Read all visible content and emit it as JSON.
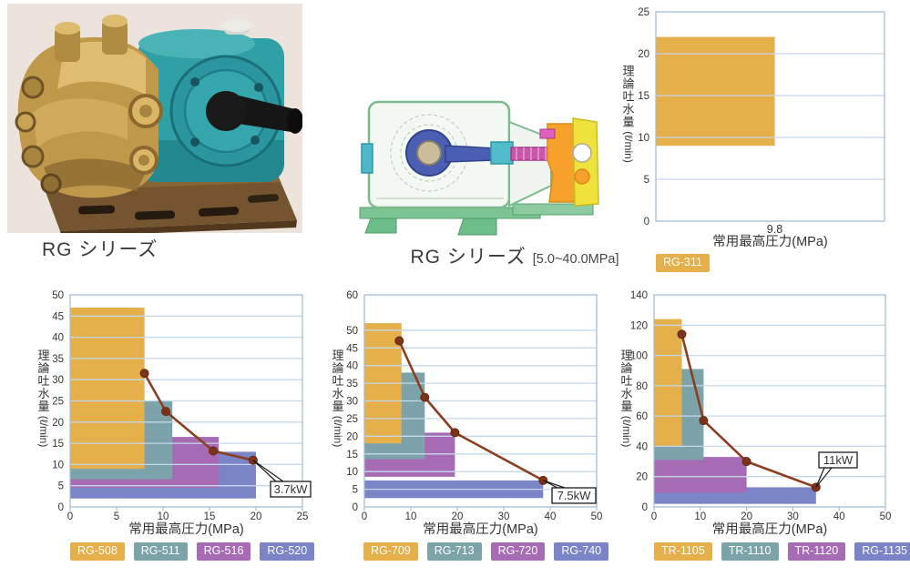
{
  "captions": {
    "photo": "RG シリーズ",
    "cutaway": "RG シリーズ",
    "cutaway_range": "[5.0~40.0MPa]"
  },
  "colors": {
    "orange": "#E5AF4A",
    "teal": "#7DA3AA",
    "purple": "#A76BB6",
    "blue": "#7A84C6",
    "line": "#8B3E20",
    "marker": "#7C3318",
    "grid": "#C5D8E9",
    "border": "#A3BDD3",
    "text": "#333333"
  },
  "chart_data": [
    {
      "id": "rg311",
      "type": "bar",
      "xlabel": "常用最高圧力(MPa)",
      "ylabel": "理論吐水量(ℓ/min)",
      "ylim": [
        0,
        25
      ],
      "yticks": [
        0,
        5,
        10,
        15,
        20,
        25
      ],
      "x_tick_labels": [
        {
          "label": "9.8",
          "frac": 0.52
        }
      ],
      "series": [
        {
          "name": "RG-311",
          "color_key": "orange",
          "x_frac": [
            0,
            0.52
          ],
          "y": [
            9,
            22
          ]
        }
      ]
    },
    {
      "id": "rg500",
      "type": "bar+line",
      "xlabel": "常用最高圧力(MPa)",
      "ylabel": "理論吐水量(ℓ/min)",
      "xlim": [
        0,
        25
      ],
      "xticks": [
        0,
        5,
        10,
        15,
        20,
        25
      ],
      "ylim": [
        0,
        50
      ],
      "yticks": [
        0,
        5,
        10,
        15,
        20,
        25,
        30,
        35,
        40,
        45,
        50
      ],
      "series": [
        {
          "name": "RG-508",
          "color_key": "orange",
          "x": [
            0,
            8
          ],
          "y": [
            9,
            47
          ]
        },
        {
          "name": "RG-511",
          "color_key": "teal",
          "x": [
            0,
            11
          ],
          "y": [
            6.5,
            25
          ]
        },
        {
          "name": "RG-516",
          "color_key": "purple",
          "x": [
            0,
            16
          ],
          "y": [
            4.5,
            16.5
          ]
        },
        {
          "name": "RG-520",
          "color_key": "blue",
          "x": [
            0,
            20
          ],
          "y": [
            2,
            13
          ]
        }
      ],
      "power_line": {
        "label": "3.7kW",
        "points": [
          [
            8,
            31.5
          ],
          [
            10.3,
            22.5
          ],
          [
            15.4,
            13.2
          ],
          [
            19.7,
            11
          ]
        ]
      }
    },
    {
      "id": "rg700",
      "type": "bar+line",
      "xlabel": "常用最高圧力(MPa)",
      "ylabel": "理論吐水量(ℓ/min)",
      "xlim": [
        0,
        50
      ],
      "xticks": [
        0,
        10,
        20,
        30,
        40,
        50
      ],
      "ylim": [
        0,
        60
      ],
      "yticks": [
        0,
        5,
        10,
        15,
        20,
        25,
        30,
        35,
        40,
        45,
        50,
        60
      ],
      "series": [
        {
          "name": "RG-709",
          "color_key": "orange",
          "x": [
            0,
            8
          ],
          "y": [
            18,
            52
          ]
        },
        {
          "name": "RG-713",
          "color_key": "teal",
          "x": [
            0,
            13
          ],
          "y": [
            13.5,
            38
          ]
        },
        {
          "name": "RG-720",
          "color_key": "purple",
          "x": [
            0,
            19.5
          ],
          "y": [
            8.5,
            21
          ]
        },
        {
          "name": "RG-740",
          "color_key": "blue",
          "x": [
            0,
            38.5
          ],
          "y": [
            2.5,
            7.5
          ]
        }
      ],
      "power_line": {
        "label": "7.5kW",
        "points": [
          [
            7.5,
            47
          ],
          [
            13,
            31
          ],
          [
            19.5,
            21
          ],
          [
            38.5,
            7.5
          ]
        ]
      }
    },
    {
      "id": "tr1100",
      "type": "bar+line",
      "xlabel": "常用最高圧力(MPa)",
      "ylabel": "理論吐水量(ℓ/min)",
      "xlim": [
        0,
        50
      ],
      "xticks": [
        0,
        10,
        20,
        30,
        40,
        50
      ],
      "ylim": [
        0,
        140
      ],
      "yticks": [
        0,
        20,
        40,
        60,
        80,
        100,
        120,
        140
      ],
      "series": [
        {
          "name": "TR-1105",
          "color_key": "orange",
          "x": [
            0,
            6
          ],
          "y": [
            40,
            124
          ]
        },
        {
          "name": "TR-1110",
          "color_key": "teal",
          "x": [
            0,
            10.7
          ],
          "y": [
            31,
            91
          ]
        },
        {
          "name": "TR-1120",
          "color_key": "purple",
          "x": [
            0,
            20
          ],
          "y": [
            9.5,
            33
          ]
        },
        {
          "name": "RG-1135",
          "color_key": "blue",
          "x": [
            0,
            35
          ],
          "y": [
            2,
            13
          ]
        }
      ],
      "power_line": {
        "label": "11kW",
        "points": [
          [
            6,
            114
          ],
          [
            10.7,
            57
          ],
          [
            20,
            30
          ],
          [
            35,
            13
          ]
        ]
      }
    }
  ]
}
